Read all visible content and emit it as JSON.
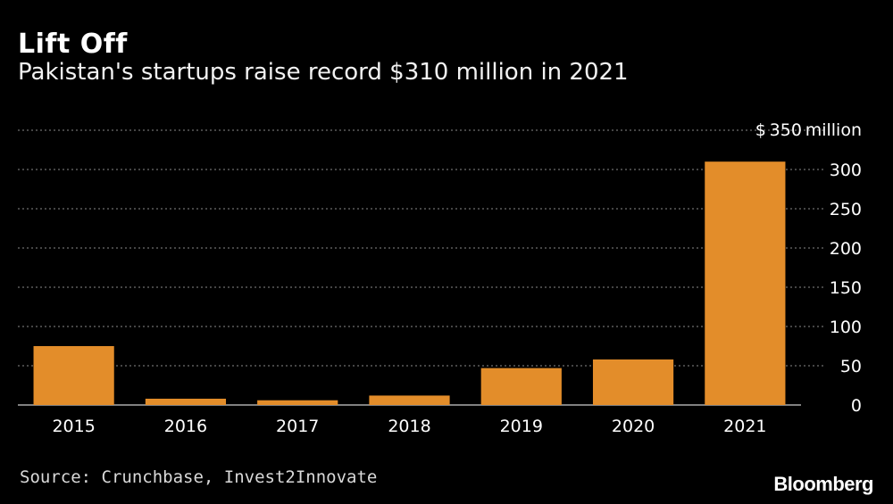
{
  "header": {
    "title": "Lift Off",
    "subtitle": "Pakistan's startups raise record $310 million in 2021"
  },
  "footer": {
    "source": "Source: Crunchbase, Invest2Innovate",
    "brand": "Bloomberg"
  },
  "colors": {
    "background": "#000000",
    "bar": "#e38d2a",
    "grid": "#8a8a8a",
    "text": "#ffffff"
  },
  "chart_data": {
    "type": "bar",
    "categories": [
      "2015",
      "2016",
      "2017",
      "2018",
      "2019",
      "2020",
      "2021"
    ],
    "values": [
      75,
      8,
      6,
      12,
      47,
      58,
      310
    ],
    "ylim": [
      0,
      350
    ],
    "yticks": [
      0,
      50,
      100,
      150,
      200,
      250,
      300,
      350
    ],
    "ytick_top_prefix": "$",
    "ytick_top_suffix": "million",
    "y_axis_side": "right",
    "grid": true
  }
}
